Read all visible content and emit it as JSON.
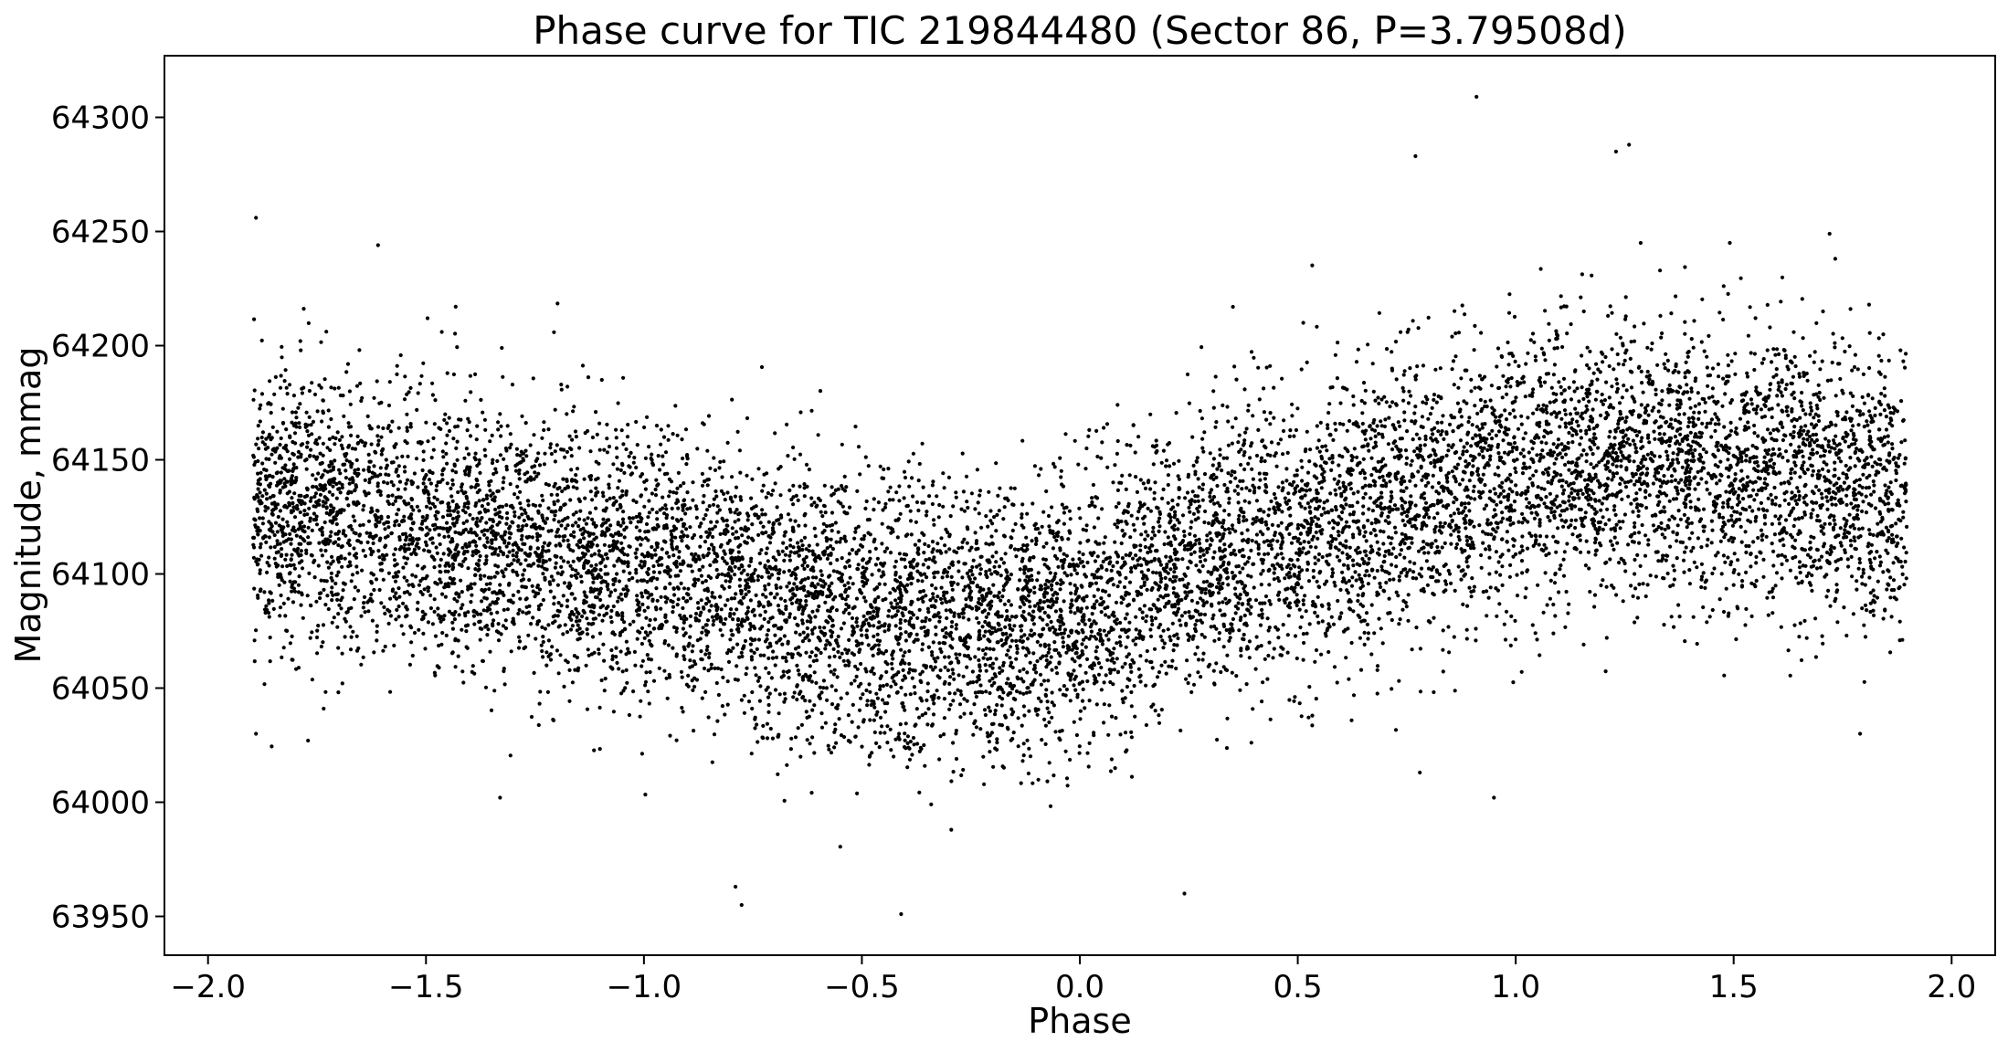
{
  "chart_data": {
    "type": "scatter",
    "title": "Phase curve for TIC 219844480 (Sector 86, P=3.79508d)",
    "xlabel": "Phase",
    "ylabel": "Magnitude, mmag",
    "xlim": [
      -2.1,
      2.1
    ],
    "ylim": [
      63933,
      64327
    ],
    "xticks": [
      -2.0,
      -1.5,
      -1.0,
      -0.5,
      0.0,
      0.5,
      1.0,
      1.5,
      2.0
    ],
    "xtick_labels": [
      "−2.0",
      "−1.5",
      "−1.0",
      "−0.5",
      "0.0",
      "0.5",
      "1.0",
      "1.5",
      "2.0"
    ],
    "yticks": [
      63950,
      64000,
      64050,
      64100,
      64150,
      64200,
      64250,
      64300
    ],
    "ytick_labels": [
      "63950",
      "64000",
      "64050",
      "64100",
      "64150",
      "64200",
      "64250",
      "64300"
    ],
    "grid": false,
    "legend": false,
    "marker_color": "#000000",
    "series": [
      {
        "x_range": [
          -1.897,
          1.897
        ],
        "approx_point_count": 11000,
        "trend": {
          "x": [
            -1.9,
            -1.5,
            -1.0,
            -0.7,
            -0.5,
            -0.3,
            -0.1,
            0.0,
            0.2,
            0.5,
            0.8,
            1.0,
            1.3,
            1.5,
            1.7,
            1.9
          ],
          "y": [
            64130,
            64120,
            64105,
            64090,
            64080,
            64078,
            64080,
            64085,
            64100,
            64120,
            64135,
            64145,
            64150,
            64148,
            64140,
            64133
          ],
          "scatter_sd": 30
        },
        "notable_points": [
          {
            "x": -1.89,
            "y": 64256
          },
          {
            "x": -1.89,
            "y": 64030
          },
          {
            "x": -1.61,
            "y": 64244
          },
          {
            "x": -1.33,
            "y": 64002
          },
          {
            "x": -0.79,
            "y": 63963
          },
          {
            "x": -0.41,
            "y": 63951
          },
          {
            "x": 0.24,
            "y": 63960
          },
          {
            "x": 0.77,
            "y": 64283
          },
          {
            "x": 0.78,
            "y": 64013
          },
          {
            "x": 0.91,
            "y": 64309
          },
          {
            "x": 0.95,
            "y": 64002
          },
          {
            "x": 1.26,
            "y": 64288
          },
          {
            "x": 1.23,
            "y": 64285
          },
          {
            "x": 1.72,
            "y": 64249
          },
          {
            "x": 1.79,
            "y": 64030
          }
        ]
      }
    ]
  }
}
